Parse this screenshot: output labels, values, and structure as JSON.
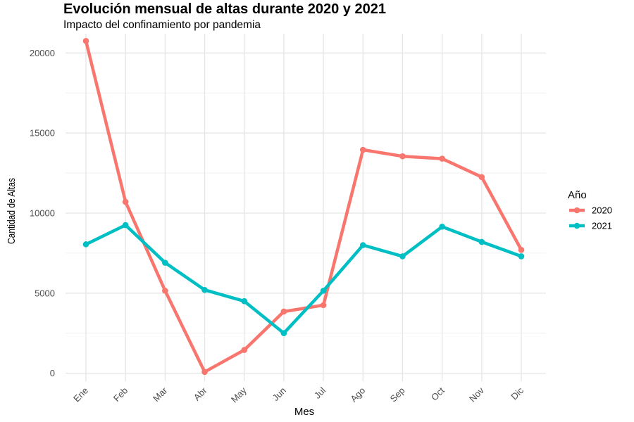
{
  "chart_data": {
    "type": "line",
    "title": "Evolución mensual de altas durante 2020 y 2021",
    "subtitle": "Impacto del confinamiento por pandemia",
    "xlabel": "Mes",
    "ylabel": "Cantidad de Altas",
    "categories": [
      "Ene",
      "Feb",
      "Mar",
      "Abr",
      "May",
      "Jun",
      "Jul",
      "Ago",
      "Sep",
      "Oct",
      "Nov",
      "Dic"
    ],
    "ylim": [
      -500,
      21200
    ],
    "yticks": [
      0,
      5000,
      10000,
      15000,
      20000
    ],
    "grid": true,
    "legend": {
      "title": "Año",
      "position": "right"
    },
    "series": [
      {
        "name": "2020",
        "color": "#F8766D",
        "values": [
          20750,
          10700,
          5150,
          80,
          1450,
          3850,
          4250,
          13950,
          13550,
          13400,
          12250,
          7700
        ]
      },
      {
        "name": "2021",
        "color": "#00BFC4",
        "values": [
          8050,
          9250,
          6900,
          5200,
          4500,
          2500,
          5150,
          8000,
          7300,
          9150,
          8200,
          7300
        ]
      }
    ]
  }
}
